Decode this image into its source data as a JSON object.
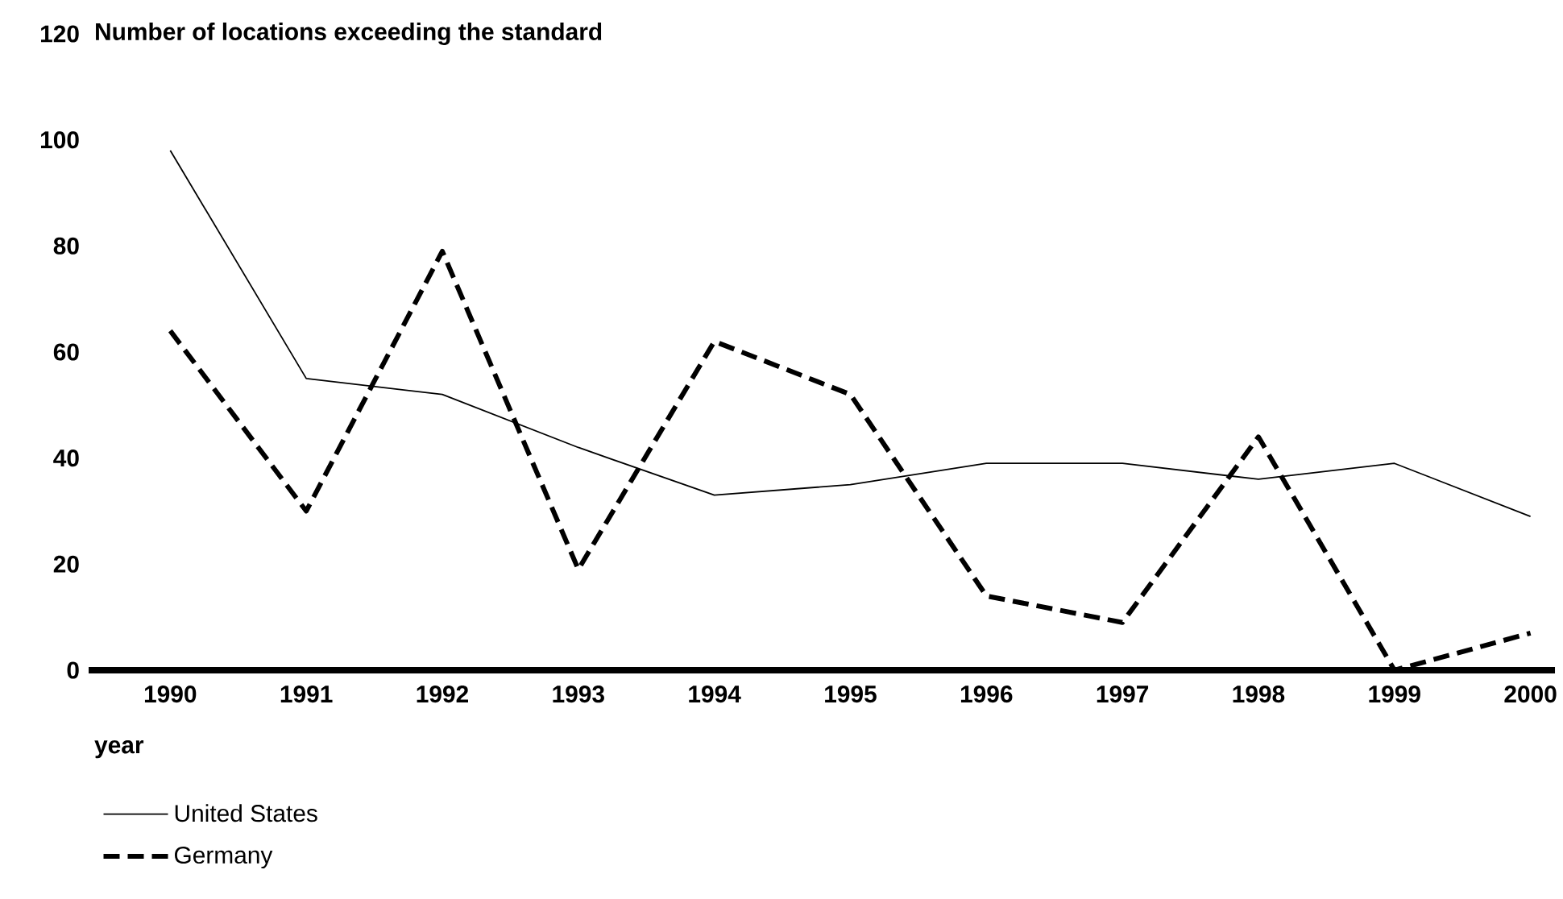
{
  "chart_data": {
    "type": "line",
    "title": "Number of locations exceeding the standard",
    "xlabel": "year",
    "categories": [
      "1990",
      "1991",
      "1992",
      "1993",
      "1994",
      "1995",
      "1996",
      "1997",
      "1998",
      "1999",
      "2000"
    ],
    "series": [
      {
        "name": "United States",
        "color": "#000000",
        "line_style": "solid",
        "values": [
          98,
          55,
          52,
          42,
          33,
          35,
          39,
          39,
          36,
          39,
          29
        ]
      },
      {
        "name": "Germany",
        "color": "#000000",
        "line_style": "dashed",
        "values": [
          64,
          30,
          79,
          19,
          62,
          52,
          14,
          9,
          44,
          0,
          7
        ]
      }
    ],
    "ylim": [
      0,
      120
    ],
    "yticks": [
      0,
      20,
      40,
      60,
      80,
      100,
      120
    ],
    "grid": false,
    "legend": "bottom left"
  }
}
